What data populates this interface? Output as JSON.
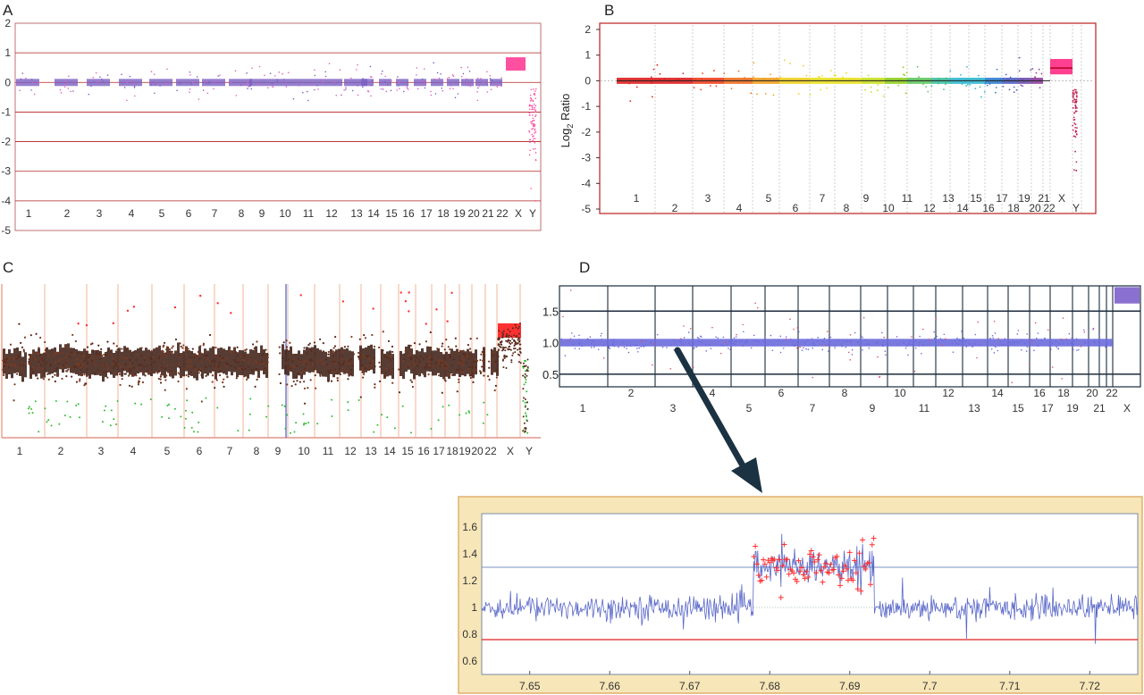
{
  "chart_data": [
    {
      "id": "A",
      "panel_label": "A",
      "type": "scatter",
      "y_ticks": [
        "2",
        "1",
        "0",
        "-1",
        "-2",
        "-3",
        "-4",
        "-5"
      ],
      "ylim": [
        -5,
        2
      ],
      "x_labels": [
        "1",
        "2",
        "3",
        "4",
        "5",
        "6",
        "7",
        "8",
        "9",
        "10",
        "11",
        "12",
        "13",
        "14",
        "15",
        "16",
        "17",
        "18",
        "19",
        "20",
        "21",
        "22",
        "X",
        "Y"
      ],
      "baseline_value": 0,
      "x_segment_value": 0.6,
      "y_segment_min": -3.5,
      "grid": true,
      "colors": {
        "points": "#7a5fc2",
        "x_points": "#ff4fa0",
        "grid": "#b02020"
      }
    },
    {
      "id": "B",
      "panel_label": "B",
      "type": "scatter",
      "ylabel": "Log2 Ratio",
      "ylabel_main": "Log",
      "ylabel_sub": "2",
      "ylabel_rest": " Ratio",
      "y_ticks": [
        "2",
        "1",
        "0",
        "-1",
        "-2",
        "-3",
        "-4",
        "-5"
      ],
      "ylim": [
        -5,
        2
      ],
      "x_labels_top": [
        "1",
        "3",
        "5",
        "7",
        "9",
        "11",
        "13",
        "15",
        "17",
        "19",
        "21",
        "X"
      ],
      "x_labels_bottom": [
        "2",
        "4",
        "6",
        "8",
        "10",
        "12",
        "14",
        "16",
        "18",
        "20",
        "22",
        "Y"
      ],
      "baseline_value": 0,
      "x_segment_value": 0.5,
      "grid": false,
      "colors": {
        "x_points": "#ff3f8f",
        "frame": "#c03030"
      }
    },
    {
      "id": "C",
      "panel_label": "C",
      "type": "scatter",
      "x_labels": [
        "1",
        "2",
        "3",
        "4",
        "5",
        "6",
        "7",
        "8",
        "9",
        "10",
        "11",
        "12",
        "13",
        "14",
        "15",
        "16",
        "17",
        "18",
        "19",
        "20",
        "22",
        "X",
        "Y"
      ],
      "colors": {
        "points": "#5a2a1a",
        "high": "#ff3030",
        "low": "#33bb33",
        "dividers": "#f0a080",
        "marker": "#4060d0"
      }
    },
    {
      "id": "D",
      "panel_label": "D",
      "type": "scatter",
      "y_ticks": [
        "1.5",
        "1.0",
        "0.5"
      ],
      "ylim": [
        0.3,
        1.9
      ],
      "x_labels_top": [
        "2",
        "4",
        "6",
        "8",
        "10",
        "12",
        "14",
        "16",
        "18",
        "20",
        "22"
      ],
      "x_labels_bottom": [
        "1",
        "3",
        "5",
        "7",
        "9",
        "11",
        "13",
        "15",
        "17",
        "19",
        "21",
        "X"
      ],
      "baseline_value": 1.0,
      "x_segment_value": 1.75,
      "colors": {
        "points": "#6a6adc",
        "frame": "#1c2c3c"
      }
    },
    {
      "id": "E",
      "type": "line",
      "y_ticks": [
        "1.6",
        "1.4",
        "1.2",
        "1",
        "0.8",
        "0.6"
      ],
      "ylim": [
        0.5,
        1.7
      ],
      "x_ticks": [
        "7.65",
        "7.66",
        "7.67",
        "7.68",
        "7.69",
        "7.7",
        "7.71",
        "7.72"
      ],
      "xlim": [
        7.644,
        7.726
      ],
      "upper_threshold": 1.3,
      "lower_threshold": 0.76,
      "baseline_value": 1.0,
      "amplified_region": [
        7.678,
        7.693
      ],
      "amplified_level": 1.3,
      "colors": {
        "line": "#5a68c8",
        "markers": "#ff3030",
        "upper": "#7a90c0",
        "lower": "#e02020",
        "background": "#f7e6b8",
        "plot_bg": "#ffffff"
      }
    }
  ]
}
